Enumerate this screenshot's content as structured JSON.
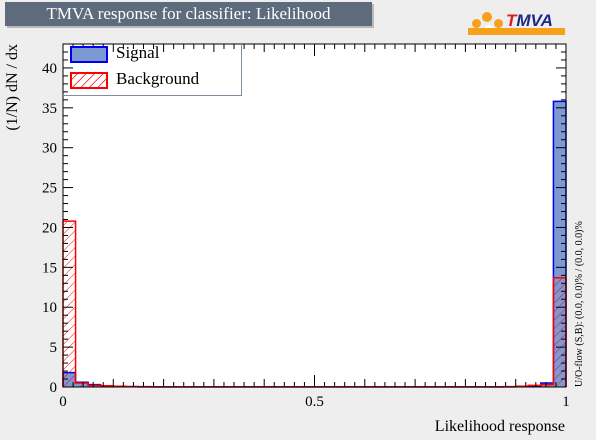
{
  "title": "TMVA response for classifier: Likelihood",
  "logo": {
    "text_t": "T",
    "text_rest": "MVA"
  },
  "colors": {
    "signal_fill": "#7d99d1",
    "signal_line": "#0000ee",
    "background_line": "#ff0000",
    "title_bg": "#5d6b7d",
    "logo_orange": "#f7a11a",
    "logo_blue": "#1b2a8a"
  },
  "overflow_text": "U/O-flow (S,B): (0.0, 0.0)% / (0.0, 0.0)%",
  "chart_data": {
    "type": "bar",
    "style": "histogram",
    "xlabel": "Likelihood response",
    "ylabel": "(1/N) dN / dx",
    "xlim": [
      0,
      1
    ],
    "ylim": [
      0,
      43
    ],
    "x_ticks": [
      "0",
      "0.5",
      "1"
    ],
    "y_ticks": [
      "0",
      "5",
      "10",
      "15",
      "20",
      "25",
      "30",
      "35",
      "40"
    ],
    "bin_width": 0.025,
    "legend_position": "top-left",
    "series": [
      {
        "name": "Signal",
        "fill": "solid",
        "values": [
          1.8,
          0.6,
          0.3,
          0.1,
          0.05,
          0.05,
          0.02,
          0.02,
          0.02,
          0.02,
          0.02,
          0.02,
          0.02,
          0.02,
          0.02,
          0.02,
          0.02,
          0.02,
          0.02,
          0.02,
          0.02,
          0.02,
          0.02,
          0.02,
          0.02,
          0.02,
          0.02,
          0.02,
          0.02,
          0.02,
          0.02,
          0.02,
          0.02,
          0.02,
          0.02,
          0.02,
          0.03,
          0.1,
          0.5,
          35.8
        ]
      },
      {
        "name": "Background",
        "fill": "hatched",
        "values": [
          20.8,
          0.5,
          0.2,
          0.15,
          0.1,
          0.05,
          0.05,
          0.02,
          0.02,
          0.02,
          0.02,
          0.02,
          0.02,
          0.02,
          0.02,
          0.02,
          0.02,
          0.02,
          0.02,
          0.02,
          0.02,
          0.02,
          0.02,
          0.02,
          0.02,
          0.02,
          0.02,
          0.02,
          0.02,
          0.02,
          0.02,
          0.02,
          0.02,
          0.02,
          0.02,
          0.05,
          0.1,
          0.2,
          0.3,
          13.7
        ]
      }
    ]
  }
}
